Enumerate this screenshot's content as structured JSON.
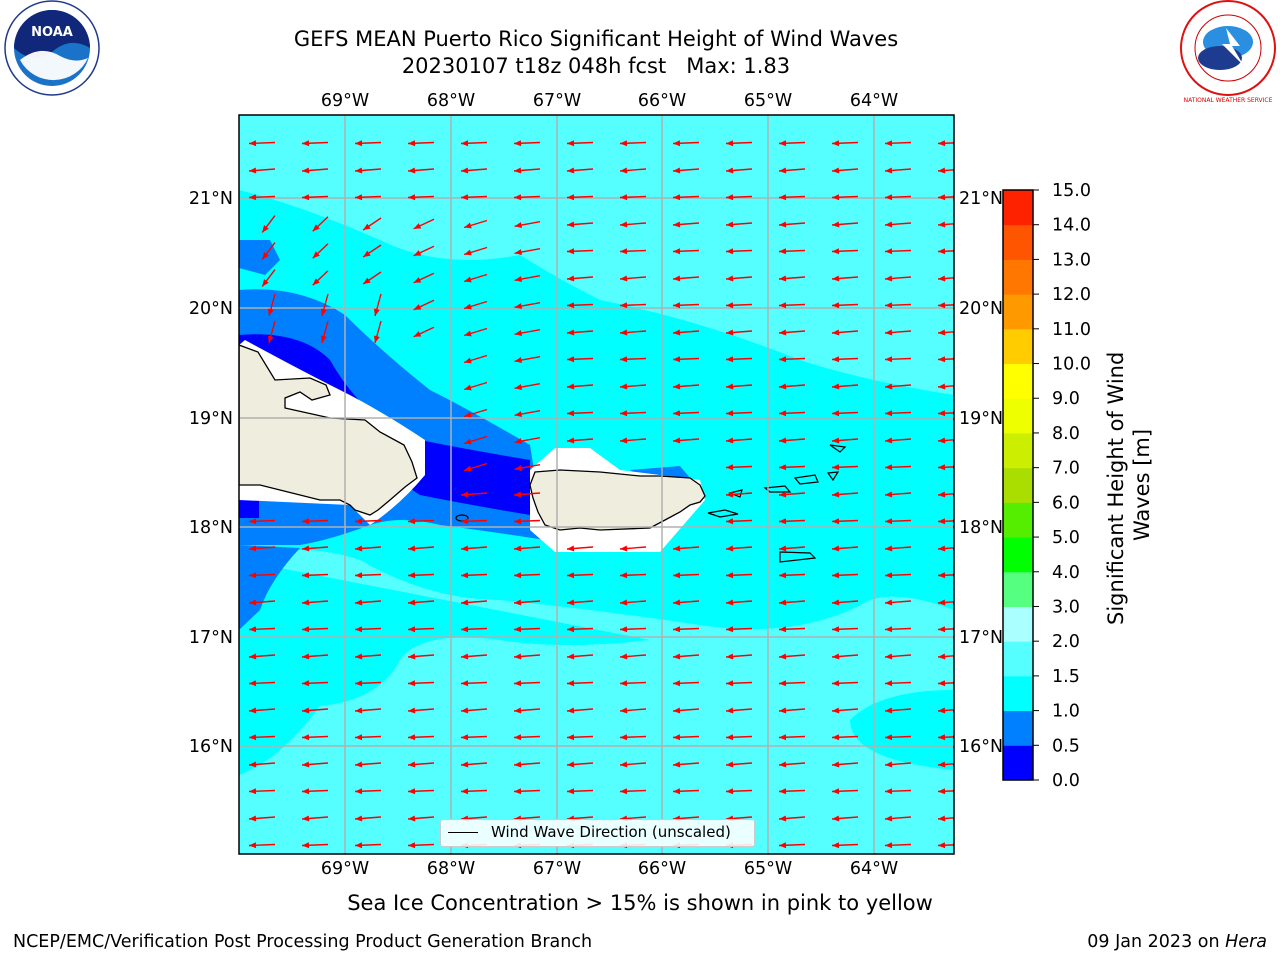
{
  "title": {
    "line1": "GEFS MEAN Puerto Rico Significant Height of Wind Waves",
    "line2": "20230107 t18z 048h fcst   Max: 1.83"
  },
  "map": {
    "lon_ticks_top": [
      "69°W",
      "68°W",
      "67°W",
      "66°W",
      "65°W",
      "64°W"
    ],
    "lon_ticks_bottom": [
      "69°W",
      "68°W",
      "67°W",
      "66°W",
      "65°W",
      "64°W"
    ],
    "lat_ticks_left": [
      "21°N",
      "20°N",
      "19°N",
      "18°N",
      "17°N",
      "16°N"
    ],
    "lat_ticks_right": [
      "21°N",
      "20°N",
      "19°N",
      "18°N",
      "17°N",
      "16°N"
    ],
    "legend_label": "Wind Wave Direction (unscaled)",
    "land_color": "#efedde",
    "ocean_colors": {
      "0-0.5": "#0000ff",
      "0.5-1.0": "#0080ff",
      "1.0-1.5": "#00ffff",
      "1.5-2.0": "#55ffff"
    },
    "arrow_color": "#ff0000",
    "arrow_direction": "toward west (easterly wind waves)"
  },
  "colorbar": {
    "label_line1": "Significant Height of Wind",
    "label_line2": "Waves [m]",
    "ticks": [
      "0.0",
      "0.5",
      "1.0",
      "1.5",
      "2.0",
      "3.0",
      "4.0",
      "5.0",
      "6.0",
      "7.0",
      "8.0",
      "9.0",
      "10.0",
      "11.0",
      "12.0",
      "13.0",
      "14.0",
      "15.0"
    ],
    "colors": [
      "#0000ff",
      "#0080ff",
      "#00ffff",
      "#55ffff",
      "#aaffff",
      "#55ff80",
      "#00ff00",
      "#55ee00",
      "#aadd00",
      "#ccee00",
      "#eeff00",
      "#ffff00",
      "#ffcc00",
      "#ff9900",
      "#ff7700",
      "#ff5500",
      "#ff2200"
    ]
  },
  "footnote": "Sea Ice Concentration > 15% is shown in pink to yellow",
  "credit_left": "NCEP/EMC/Verification Post Processing Product Generation Branch",
  "credit_right_prefix": "09 Jan 2023 on ",
  "credit_right_host": "Hera",
  "logos": {
    "left": "NOAA",
    "right": "NATIONAL WEATHER SERVICE"
  }
}
